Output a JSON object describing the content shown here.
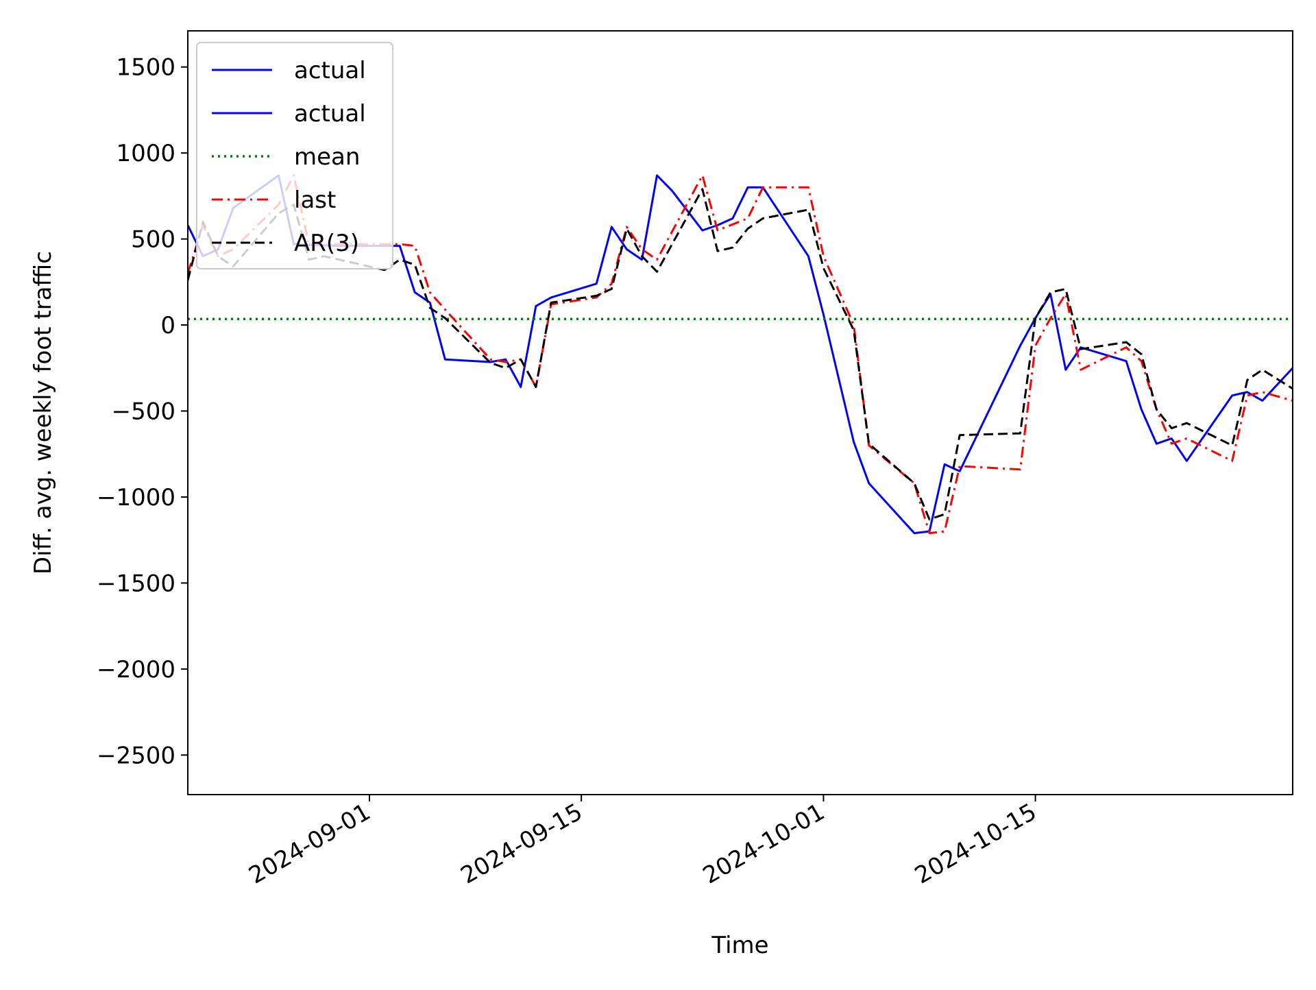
{
  "chart_data": {
    "type": "line",
    "title": "",
    "xlabel": "Time",
    "ylabel": "Diff. avg. weekly foot traffic",
    "xlim": [
      "2024-08-20",
      "2024-11-01"
    ],
    "ylim": [
      -2730,
      1710
    ],
    "x_ticks": [
      "2024-09-01",
      "2024-09-15",
      "2024-10-01",
      "2024-10-15"
    ],
    "y_ticks": [
      1500,
      1000,
      500,
      0,
      -500,
      -1000,
      -1500,
      -2000,
      -2500
    ],
    "y_tick_labels": [
      "1500",
      "1000",
      "500",
      "0",
      "−500",
      "−1000",
      "−1500",
      "−2000",
      "−2500"
    ],
    "grid": false,
    "legend_position": "top-left",
    "legend": [
      "actual",
      "actual",
      "mean",
      "last",
      "AR(3)"
    ],
    "series": [
      {
        "name": "actual",
        "color": "#0000ff",
        "style": "solid",
        "points": [
          [
            "2024-08-20",
            580
          ],
          [
            "2024-08-21",
            400
          ],
          [
            "2024-08-22",
            440
          ],
          [
            "2024-08-23",
            680
          ],
          [
            "2024-08-26",
            870
          ],
          [
            "2024-08-27",
            470
          ],
          [
            "2024-08-30",
            460
          ],
          [
            "2024-09-01",
            460
          ],
          [
            "2024-09-03",
            460
          ],
          [
            "2024-09-04",
            190
          ],
          [
            "2024-09-05",
            130
          ],
          [
            "2024-09-06",
            -200
          ],
          [
            "2024-09-09",
            -215
          ],
          [
            "2024-09-10",
            -200
          ],
          [
            "2024-09-11",
            -360
          ],
          [
            "2024-09-12",
            110
          ],
          [
            "2024-09-13",
            160
          ],
          [
            "2024-09-16",
            240
          ],
          [
            "2024-09-17",
            570
          ],
          [
            "2024-09-18",
            440
          ],
          [
            "2024-09-19",
            380
          ],
          [
            "2024-09-20",
            870
          ],
          [
            "2024-09-21",
            780
          ],
          [
            "2024-09-23",
            550
          ],
          [
            "2024-09-24",
            580
          ],
          [
            "2024-09-25",
            620
          ],
          [
            "2024-09-26",
            800
          ],
          [
            "2024-09-27",
            800
          ],
          [
            "2024-09-30",
            400
          ],
          [
            "2024-10-01",
            60
          ],
          [
            "2024-10-03",
            -680
          ],
          [
            "2024-10-04",
            -920
          ],
          [
            "2024-10-07",
            -1210
          ],
          [
            "2024-10-08",
            -1200
          ],
          [
            "2024-10-09",
            -810
          ],
          [
            "2024-10-10",
            -850
          ],
          [
            "2024-10-14",
            -120
          ],
          [
            "2024-10-15",
            40
          ],
          [
            "2024-10-16",
            180
          ],
          [
            "2024-10-17",
            -260
          ],
          [
            "2024-10-18",
            -130
          ],
          [
            "2024-10-21",
            -210
          ],
          [
            "2024-10-22",
            -490
          ],
          [
            "2024-10-23",
            -690
          ],
          [
            "2024-10-24",
            -660
          ],
          [
            "2024-10-25",
            -790
          ],
          [
            "2024-10-28",
            -410
          ],
          [
            "2024-10-29",
            -390
          ],
          [
            "2024-10-30",
            -440
          ],
          [
            "2024-11-01",
            -250
          ]
        ]
      },
      {
        "name": "mean",
        "color": "#008000",
        "style": "dotted",
        "points": [
          [
            "2024-08-20",
            35
          ],
          [
            "2024-11-01",
            35
          ]
        ]
      },
      {
        "name": "last",
        "color": "#ff0000",
        "style": "dashdot",
        "points": [
          [
            "2024-08-20",
            300
          ],
          [
            "2024-08-21",
            580
          ],
          [
            "2024-08-22",
            400
          ],
          [
            "2024-08-23",
            440
          ],
          [
            "2024-08-26",
            700
          ],
          [
            "2024-08-27",
            870
          ],
          [
            "2024-08-28",
            470
          ],
          [
            "2024-09-01",
            470
          ],
          [
            "2024-09-03",
            470
          ],
          [
            "2024-09-04",
            460
          ],
          [
            "2024-09-05",
            190
          ],
          [
            "2024-09-06",
            90
          ],
          [
            "2024-09-09",
            -200
          ],
          [
            "2024-09-10",
            -215
          ],
          [
            "2024-09-11",
            -200
          ],
          [
            "2024-09-12",
            -360
          ],
          [
            "2024-09-13",
            120
          ],
          [
            "2024-09-16",
            160
          ],
          [
            "2024-09-17",
            240
          ],
          [
            "2024-09-18",
            570
          ],
          [
            "2024-09-19",
            440
          ],
          [
            "2024-09-20",
            380
          ],
          [
            "2024-09-23",
            870
          ],
          [
            "2024-09-24",
            550
          ],
          [
            "2024-09-26",
            620
          ],
          [
            "2024-09-27",
            800
          ],
          [
            "2024-09-30",
            800
          ],
          [
            "2024-10-01",
            400
          ],
          [
            "2024-10-03",
            0
          ],
          [
            "2024-10-04",
            -700
          ],
          [
            "2024-10-07",
            -920
          ],
          [
            "2024-10-08",
            -1210
          ],
          [
            "2024-10-09",
            -1200
          ],
          [
            "2024-10-10",
            -820
          ],
          [
            "2024-10-14",
            -840
          ],
          [
            "2024-10-15",
            -120
          ],
          [
            "2024-10-16",
            40
          ],
          [
            "2024-10-17",
            180
          ],
          [
            "2024-10-18",
            -260
          ],
          [
            "2024-10-21",
            -130
          ],
          [
            "2024-10-22",
            -210
          ],
          [
            "2024-10-23",
            -490
          ],
          [
            "2024-10-24",
            -690
          ],
          [
            "2024-10-25",
            -660
          ],
          [
            "2024-10-28",
            -790
          ],
          [
            "2024-10-29",
            -410
          ],
          [
            "2024-10-30",
            -390
          ],
          [
            "2024-11-01",
            -440
          ]
        ]
      },
      {
        "name": "AR(3)",
        "color": "#000000",
        "style": "dashed",
        "points": [
          [
            "2024-08-20",
            260
          ],
          [
            "2024-08-21",
            600
          ],
          [
            "2024-08-22",
            400
          ],
          [
            "2024-08-23",
            340
          ],
          [
            "2024-08-26",
            650
          ],
          [
            "2024-08-27",
            700
          ],
          [
            "2024-08-28",
            380
          ],
          [
            "2024-08-29",
            400
          ],
          [
            "2024-09-02",
            320
          ],
          [
            "2024-09-03",
            380
          ],
          [
            "2024-09-04",
            350
          ],
          [
            "2024-09-05",
            100
          ],
          [
            "2024-09-06",
            40
          ],
          [
            "2024-09-09",
            -220
          ],
          [
            "2024-09-10",
            -250
          ],
          [
            "2024-09-11",
            -200
          ],
          [
            "2024-09-12",
            -360
          ],
          [
            "2024-09-13",
            130
          ],
          [
            "2024-09-16",
            170
          ],
          [
            "2024-09-17",
            210
          ],
          [
            "2024-09-18",
            560
          ],
          [
            "2024-09-19",
            400
          ],
          [
            "2024-09-20",
            310
          ],
          [
            "2024-09-23",
            790
          ],
          [
            "2024-09-24",
            430
          ],
          [
            "2024-09-25",
            450
          ],
          [
            "2024-09-26",
            560
          ],
          [
            "2024-09-27",
            620
          ],
          [
            "2024-09-30",
            670
          ],
          [
            "2024-10-01",
            330
          ],
          [
            "2024-10-03",
            -30
          ],
          [
            "2024-10-04",
            -690
          ],
          [
            "2024-10-07",
            -920
          ],
          [
            "2024-10-08",
            -1130
          ],
          [
            "2024-10-09",
            -1100
          ],
          [
            "2024-10-10",
            -640
          ],
          [
            "2024-10-14",
            -630
          ],
          [
            "2024-10-15",
            40
          ],
          [
            "2024-10-16",
            190
          ],
          [
            "2024-10-17",
            210
          ],
          [
            "2024-10-18",
            -140
          ],
          [
            "2024-10-21",
            -100
          ],
          [
            "2024-10-22",
            -170
          ],
          [
            "2024-10-23",
            -490
          ],
          [
            "2024-10-24",
            -600
          ],
          [
            "2024-10-25",
            -570
          ],
          [
            "2024-10-28",
            -700
          ],
          [
            "2024-10-29",
            -320
          ],
          [
            "2024-10-30",
            -260
          ],
          [
            "2024-11-01",
            -370
          ]
        ]
      }
    ],
    "legend_entries": [
      {
        "label": "actual",
        "color": "#0000ff",
        "style": "solid"
      },
      {
        "label": "actual",
        "color": "#0000ff",
        "style": "solid"
      },
      {
        "label": "mean",
        "color": "#008000",
        "style": "dotted"
      },
      {
        "label": "last",
        "color": "#ff0000",
        "style": "dashdot"
      },
      {
        "label": "AR(3)",
        "color": "#000000",
        "style": "dashed"
      }
    ]
  }
}
